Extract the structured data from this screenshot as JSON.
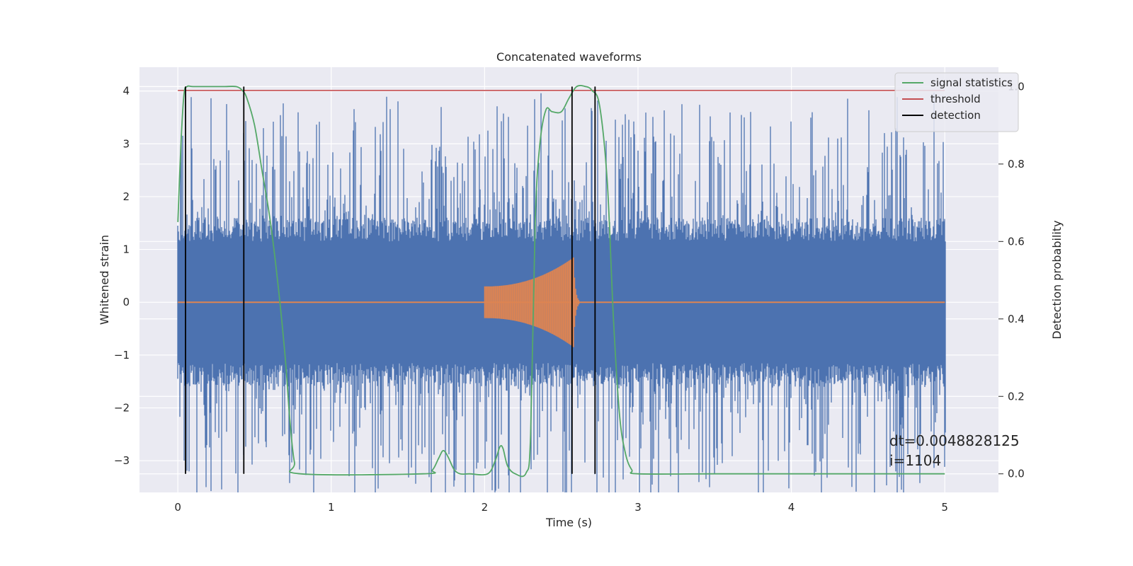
{
  "chart_data": {
    "type": "line",
    "title": "Concatenated waveforms",
    "xlabel": "Time (s)",
    "ylabel": "Whitened strain",
    "y2label": "Detection probability",
    "xlim": [
      -0.25,
      5.35
    ],
    "ylim": [
      -3.6,
      4.45
    ],
    "y2lim": [
      -0.048,
      1.05
    ],
    "x_ticks": [
      0,
      1,
      2,
      3,
      4,
      5
    ],
    "x_tick_labels": [
      "0",
      "1",
      "2",
      "3",
      "4",
      "5"
    ],
    "y_ticks": [
      -3,
      -2,
      -1,
      0,
      1,
      2,
      3,
      4
    ],
    "y_tick_labels": [
      "−3",
      "−2",
      "−1",
      "0",
      "1",
      "2",
      "3",
      "4"
    ],
    "y2_ticks": [
      0.0,
      0.2,
      0.4,
      0.6,
      0.8,
      1.0
    ],
    "y2_tick_labels": [
      "0.0",
      "0.2",
      "0.4",
      "0.6",
      "0.8",
      "1.0"
    ],
    "grid": true,
    "legend_position": "top-right",
    "series": [
      {
        "name": "whitened strain (noise)",
        "axis": "left",
        "color": "#4c72b0",
        "envelope": 1.6,
        "peak": 4.1,
        "duration": [
          0,
          5
        ],
        "in_legend": false
      },
      {
        "name": "injected waveform",
        "axis": "left",
        "color": "#dd8452",
        "start": 2.0,
        "end": 2.58,
        "amplitude_start": 0.3,
        "amplitude_end": 0.85,
        "in_legend": false
      },
      {
        "name": "signal statistics",
        "axis": "right",
        "color": "#55a868",
        "in_legend": true,
        "x": [
          0,
          0.02,
          0.04,
          0.06,
          0.1,
          0.2,
          0.3,
          0.38,
          0.42,
          0.45,
          0.5,
          0.55,
          0.6,
          0.65,
          0.7,
          0.73,
          0.76,
          0.8,
          1.6,
          1.66,
          1.7,
          1.73,
          1.76,
          1.8,
          1.84,
          1.9,
          2.02,
          2.07,
          2.1,
          2.12,
          2.15,
          2.2,
          2.27,
          2.3,
          2.33,
          2.36,
          2.4,
          2.44,
          2.5,
          2.55,
          2.6,
          2.66,
          2.7,
          2.75,
          2.8,
          2.84,
          2.88,
          2.92,
          2.96,
          3.0,
          3.5,
          4.0,
          5.0
        ],
        "y": [
          0.65,
          0.85,
          0.98,
          1.0,
          1.0,
          1.0,
          1.0,
          1.0,
          0.99,
          0.97,
          0.9,
          0.78,
          0.66,
          0.5,
          0.3,
          0.14,
          0.03,
          0.0,
          0.0,
          0.01,
          0.04,
          0.06,
          0.045,
          0.012,
          0.0,
          0.0,
          0.0,
          0.035,
          0.07,
          0.065,
          0.02,
          0.0,
          0.002,
          0.1,
          0.65,
          0.85,
          0.94,
          0.935,
          0.935,
          0.97,
          1.0,
          1.0,
          0.99,
          0.95,
          0.75,
          0.4,
          0.15,
          0.05,
          0.01,
          0.0,
          0.0,
          0.0,
          0.0
        ]
      },
      {
        "name": "threshold",
        "axis": "right",
        "color": "#c44e52",
        "value": 0.99,
        "x_range": [
          0,
          5
        ],
        "in_legend": true
      },
      {
        "name": "detection",
        "axis": "right",
        "color": "#000000",
        "x": [
          0.05,
          0.43,
          2.57,
          2.72
        ],
        "in_legend": true
      }
    ],
    "annotation": {
      "line1": "dt=0.0048828125",
      "line2": " i=1104"
    }
  }
}
